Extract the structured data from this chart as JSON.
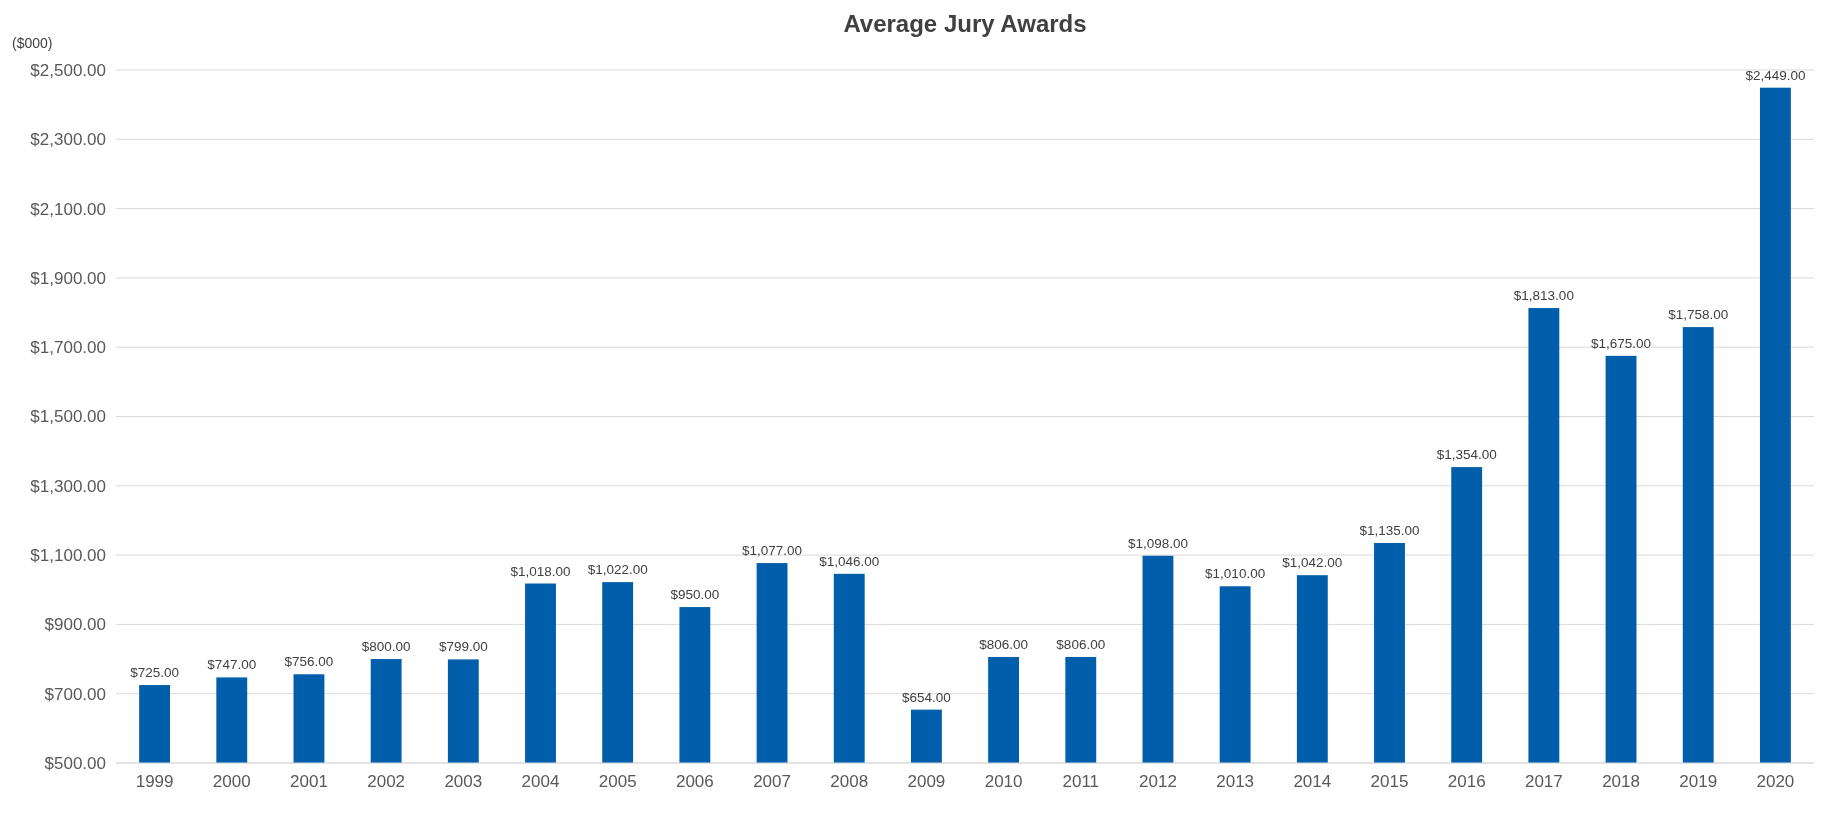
{
  "chart_data": {
    "type": "bar",
    "title": "Average Jury Awards",
    "ylabel": "($000)",
    "categories": [
      "1999",
      "2000",
      "2001",
      "2002",
      "2003",
      "2004",
      "2005",
      "2006",
      "2007",
      "2008",
      "2009",
      "2010",
      "2011",
      "2012",
      "2013",
      "2014",
      "2015",
      "2016",
      "2017",
      "2018",
      "2019",
      "2020"
    ],
    "values": [
      725,
      747,
      756,
      800,
      799,
      1018,
      1022,
      950,
      1077,
      1046,
      654,
      806,
      806,
      1098,
      1010,
      1042,
      1135,
      1354,
      1813,
      1675,
      1758,
      2449
    ],
    "color": "#005eaa",
    "ylim": [
      500,
      2500
    ],
    "yticks": [
      {
        "value": 500,
        "label": "$500.00"
      },
      {
        "value": 700,
        "label": "$700.00"
      },
      {
        "value": 900,
        "label": "$900.00"
      },
      {
        "value": 1100,
        "label": "$1,100.00"
      },
      {
        "value": 1300,
        "label": "$1,300.00"
      },
      {
        "value": 1500,
        "label": "$1,500.00"
      },
      {
        "value": 1700,
        "label": "$1,700.00"
      },
      {
        "value": 1900,
        "label": "$1,900.00"
      },
      {
        "value": 2100,
        "label": "$2,100.00"
      },
      {
        "value": 2300,
        "label": "$2,300.00"
      },
      {
        "value": 2500,
        "label": "$2,500.00"
      }
    ],
    "grid": "y",
    "value_labels": [
      "$725.00",
      "$747.00",
      "$756.00",
      "$800.00",
      "$799.00",
      "$1,018.00",
      "$1,022.00",
      "$950.00",
      "$1,077.00",
      "$1,046.00",
      "$654.00",
      "$806.00",
      "$806.00",
      "$1,098.00",
      "$1,010.00",
      "$1,042.00",
      "$1,135.00",
      "$1,354.00",
      "$1,813.00",
      "$1,675.00",
      "$1,758.00",
      "$2,449.00"
    ]
  }
}
